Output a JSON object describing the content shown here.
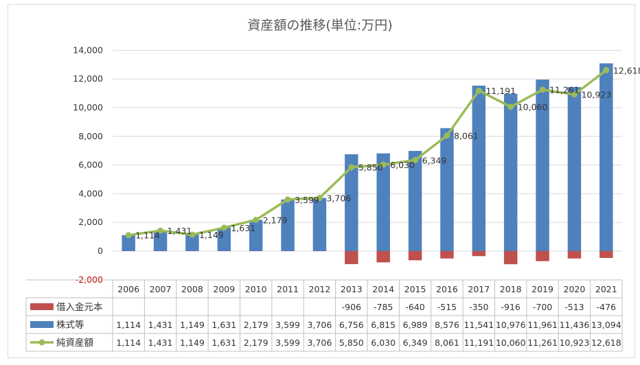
{
  "chart_data": {
    "type": "bar",
    "title": "資産額の推移(単位:万円)",
    "categories": [
      "2006",
      "2007",
      "2008",
      "2009",
      "2010",
      "2011",
      "2012",
      "2013",
      "2014",
      "2015",
      "2016",
      "2017",
      "2018",
      "2019",
      "2020",
      "2021"
    ],
    "ylim": [
      -2000,
      14000
    ],
    "yticks": [
      -2000,
      0,
      2000,
      4000,
      6000,
      8000,
      10000,
      12000,
      14000
    ],
    "ytick_labels": [
      "-2,000",
      "0",
      "2,000",
      "4,000",
      "6,000",
      "8,000",
      "10,000",
      "12,000",
      "14,000"
    ],
    "grid": true,
    "legend": "data-table",
    "series": [
      {
        "name": "借入金元本",
        "kind": "bar",
        "color": "#c0504d",
        "values": [
          null,
          null,
          null,
          null,
          null,
          null,
          null,
          -906,
          -785,
          -640,
          -515,
          -350,
          -916,
          -700,
          -513,
          -476
        ],
        "labels": [
          "",
          "",
          "",
          "",
          "",
          "",
          "",
          "-906",
          "-785",
          "-640",
          "-515",
          "-350",
          "-916",
          "-700",
          "-513",
          "-476"
        ]
      },
      {
        "name": "株式等",
        "kind": "bar",
        "color": "#4f81bd",
        "values": [
          1114,
          1431,
          1149,
          1631,
          2179,
          3599,
          3706,
          6756,
          6815,
          6989,
          8576,
          11541,
          10976,
          11961,
          11436,
          13094
        ],
        "labels": [
          "1,114",
          "1,431",
          "1,149",
          "1,631",
          "2,179",
          "3,599",
          "3,706",
          "6,756",
          "6,815",
          "6,989",
          "8,576",
          "11,541",
          "10,976",
          "11,961",
          "11,436",
          "13,094"
        ]
      },
      {
        "name": "純資産額",
        "kind": "line",
        "color": "#9bbb59",
        "values": [
          1114,
          1431,
          1149,
          1631,
          2179,
          3599,
          3706,
          5850,
          6030,
          6349,
          8061,
          11191,
          10060,
          11261,
          10923,
          12618
        ],
        "labels": [
          "1,114",
          "1,431",
          "1,149",
          "1,631",
          "2,179",
          "3,599",
          "3,706",
          "5,850",
          "6,030",
          "6,349",
          "8,061",
          "11,191",
          "10,060",
          "11,261",
          "10,923",
          "12,618"
        ]
      }
    ]
  }
}
